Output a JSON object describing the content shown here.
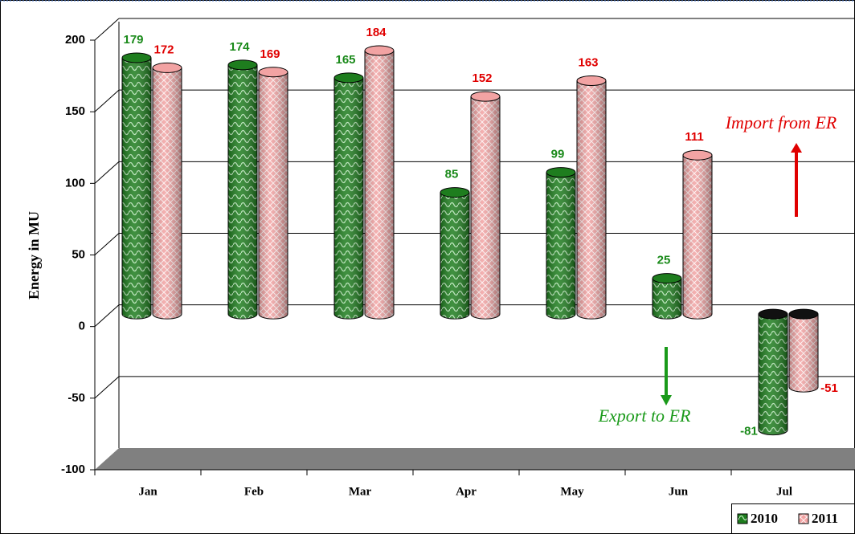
{
  "chart_data": {
    "type": "bar3d",
    "y_label": "Energy in MU",
    "categories": [
      "Jan",
      "Feb",
      "Mar",
      "Apr",
      "May",
      "Jun",
      "Jul"
    ],
    "series": [
      {
        "name": "2010",
        "color": "#1e7d1e",
        "label_color": "#1a8a1a",
        "values": [
          179,
          174,
          165,
          85,
          99,
          25,
          -81
        ]
      },
      {
        "name": "2011",
        "color": "#f2a3a3",
        "label_color": "#e00000",
        "values": [
          172,
          169,
          184,
          152,
          163,
          111,
          -51
        ]
      }
    ],
    "ylim": [
      -100,
      200
    ],
    "yticks": [
      -100,
      -50,
      0,
      50,
      100,
      150,
      200
    ],
    "grid": true,
    "annotations": [
      {
        "text": "Import from ER",
        "color": "#e00000"
      },
      {
        "text": "Export to ER",
        "color": "#1a9a1a"
      }
    ],
    "legend": "bottom-right"
  }
}
